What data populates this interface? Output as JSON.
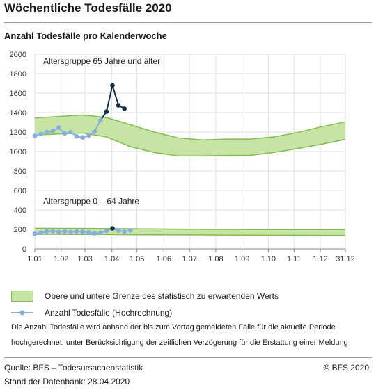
{
  "page": {
    "title": "Wöchentliche Todesfälle 2020",
    "subtitle": "Anzahl Todesfälle pro Kalenderwoche"
  },
  "chart_data": {
    "type": "line",
    "ylim": [
      0,
      2000
    ],
    "yticks": [
      0,
      200,
      400,
      600,
      800,
      1000,
      1200,
      1400,
      1600,
      1800,
      2000
    ],
    "xlim": [
      1.0,
      53.0
    ],
    "xtick_labels": [
      "1.01",
      "1.02",
      "1.03",
      "1.04",
      "1.05",
      "1.06",
      "1.07",
      "1.08",
      "1.09",
      "1.10",
      "1.11",
      "1.12",
      "31.12"
    ],
    "xtick_weeks": [
      1,
      5.4,
      9.4,
      13.9,
      18.1,
      22.6,
      26.9,
      31.3,
      35.7,
      40.1,
      44.4,
      48.8,
      53
    ],
    "grid": true,
    "colors": {
      "band_fill": "#c8e4a5",
      "band_stroke": "#7fbd4e",
      "series": "#88aee0",
      "highlight": "#0f2f4d"
    },
    "annotations": [
      "Altersgruppe 65 Jahre und älter",
      "Altersgruppe 0 – 64 Jahre"
    ],
    "bands": [
      {
        "group": "65+",
        "upper": [
          [
            1,
            1345
          ],
          [
            5,
            1360
          ],
          [
            9,
            1375
          ],
          [
            13,
            1350
          ],
          [
            17,
            1275
          ],
          [
            21,
            1200
          ],
          [
            25,
            1140
          ],
          [
            29,
            1120
          ],
          [
            33,
            1128
          ],
          [
            37,
            1128
          ],
          [
            41,
            1150
          ],
          [
            45,
            1195
          ],
          [
            49,
            1255
          ],
          [
            53,
            1305
          ]
        ],
        "lower": [
          [
            1,
            1170
          ],
          [
            5,
            1180
          ],
          [
            9,
            1190
          ],
          [
            13,
            1150
          ],
          [
            17,
            1050
          ],
          [
            21,
            990
          ],
          [
            25,
            955
          ],
          [
            29,
            955
          ],
          [
            33,
            960
          ],
          [
            37,
            960
          ],
          [
            41,
            990
          ],
          [
            45,
            1030
          ],
          [
            49,
            1075
          ],
          [
            53,
            1125
          ]
        ]
      },
      {
        "group": "0-64",
        "upper": [
          [
            1,
            212
          ],
          [
            10,
            210
          ],
          [
            20,
            205
          ],
          [
            30,
            200
          ],
          [
            40,
            198
          ],
          [
            53,
            198
          ]
        ],
        "lower": [
          [
            1,
            150
          ],
          [
            10,
            148
          ],
          [
            20,
            145
          ],
          [
            30,
            143
          ],
          [
            40,
            140
          ],
          [
            53,
            138
          ]
        ]
      }
    ],
    "series": [
      {
        "group": "65+",
        "points": [
          [
            1,
            1160
          ],
          [
            2,
            1180
          ],
          [
            3,
            1200
          ],
          [
            4,
            1210
          ],
          [
            5,
            1245
          ],
          [
            6,
            1185
          ],
          [
            7,
            1200
          ],
          [
            8,
            1155
          ],
          [
            9,
            1145
          ],
          [
            10,
            1165
          ],
          [
            11,
            1205
          ],
          [
            12,
            1320
          ],
          [
            13,
            1410
          ],
          [
            14,
            1680
          ],
          [
            15,
            1475
          ],
          [
            16,
            1440
          ]
        ],
        "highlight_from_index": 11
      },
      {
        "group": "0-64",
        "points": [
          [
            1,
            155
          ],
          [
            2,
            165
          ],
          [
            3,
            178
          ],
          [
            4,
            182
          ],
          [
            5,
            175
          ],
          [
            6,
            180
          ],
          [
            7,
            172
          ],
          [
            8,
            180
          ],
          [
            9,
            176
          ],
          [
            10,
            170
          ],
          [
            11,
            160
          ],
          [
            12,
            165
          ],
          [
            13,
            185
          ],
          [
            14,
            210
          ],
          [
            15,
            188
          ],
          [
            16,
            178
          ],
          [
            17,
            190
          ]
        ],
        "highlight_weeks": [
          14
        ]
      }
    ]
  },
  "legend": {
    "band_label": "Obere und untere Grenze des statistisch zu erwartenden Werts",
    "series_label": "Anzahl Todesfälle (Hochrechnung)"
  },
  "note": {
    "line1": "Die Anzahl Todesfälle wird anhand der bis zum Vortag gemeldeten Fälle für die aktuelle Periode",
    "line2": "hochgerechnet, unter Berücksichtigung der zeitlichen Verzögerung für die Erstattung einer Meldung"
  },
  "footer": {
    "source": "Quelle: BFS – Todesursachenstatistik",
    "date": "Stand der Datenbank: 28.04.2020",
    "copyright": "© BFS 2020"
  }
}
